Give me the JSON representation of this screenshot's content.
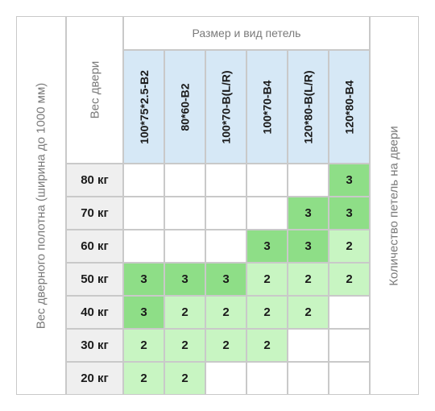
{
  "table": {
    "left_label": "Вес дверного полотна (ширина до 1000 мм)",
    "right_label": "Количество петель на двери",
    "weight_header": "Вес двери",
    "hinge_header": "Размер и вид петель",
    "models": [
      "100*75*2.5-B2",
      "80*60-B2",
      "100*70-B(L/R)",
      "100*70-B4",
      "120*80-B(L/R)",
      "120*80-B4"
    ],
    "rows": [
      {
        "weight": "80 кг",
        "counts": [
          "",
          "",
          "",
          "",
          "",
          "3"
        ]
      },
      {
        "weight": "70 кг",
        "counts": [
          "",
          "",
          "",
          "",
          "3",
          "3"
        ]
      },
      {
        "weight": "60 кг",
        "counts": [
          "",
          "",
          "",
          "3",
          "3",
          "2"
        ]
      },
      {
        "weight": "50 кг",
        "counts": [
          "3",
          "3",
          "3",
          "2",
          "2",
          "2"
        ]
      },
      {
        "weight": "40 кг",
        "counts": [
          "3",
          "2",
          "2",
          "2",
          "2",
          ""
        ]
      },
      {
        "weight": "30 кг",
        "counts": [
          "2",
          "2",
          "2",
          "2",
          "",
          ""
        ]
      },
      {
        "weight": "20 кг",
        "counts": [
          "2",
          "2",
          "",
          "",
          "",
          ""
        ]
      }
    ],
    "colors": {
      "count_3": "#8ede87",
      "count_2": "#c8f5c2",
      "border": "#c9c9c9",
      "header_blue": "#d6e8f6",
      "weight_gray": "#efefef"
    }
  }
}
